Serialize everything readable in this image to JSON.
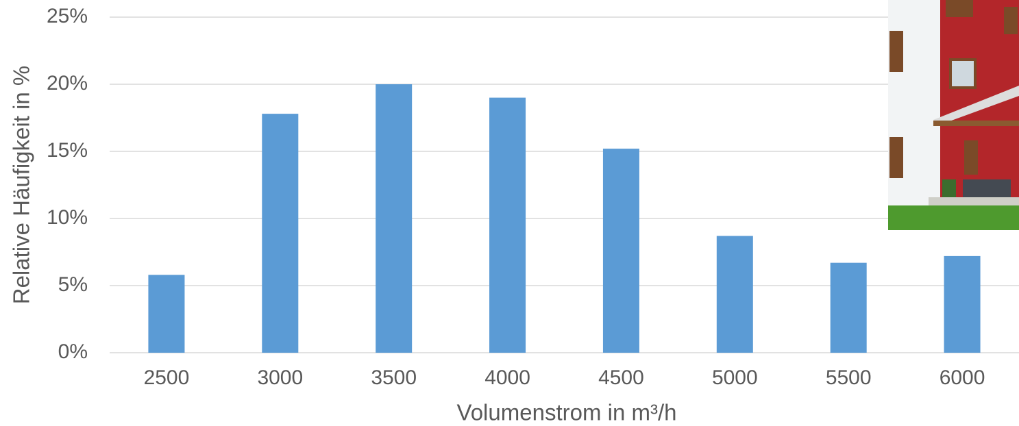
{
  "chart_data": {
    "type": "bar",
    "x_label": "Volumenstrom in m³/h",
    "y_label": "Relative Häufigkeit in %",
    "categories": [
      "2500",
      "3000",
      "3500",
      "4000",
      "4500",
      "5000",
      "5500",
      "6000"
    ],
    "values": [
      5.8,
      17.8,
      20.0,
      19.0,
      15.2,
      8.7,
      6.7,
      7.2
    ],
    "color": "#5b9bd5",
    "ylim": [
      0,
      25
    ],
    "yticks": [
      {
        "value": 0,
        "label": "0%"
      },
      {
        "value": 5,
        "label": "5%"
      },
      {
        "value": 10,
        "label": "10%"
      },
      {
        "value": 15,
        "label": "15%"
      },
      {
        "value": 20,
        "label": "20%"
      },
      {
        "value": 25,
        "label": "25%"
      }
    ],
    "grid": true
  }
}
